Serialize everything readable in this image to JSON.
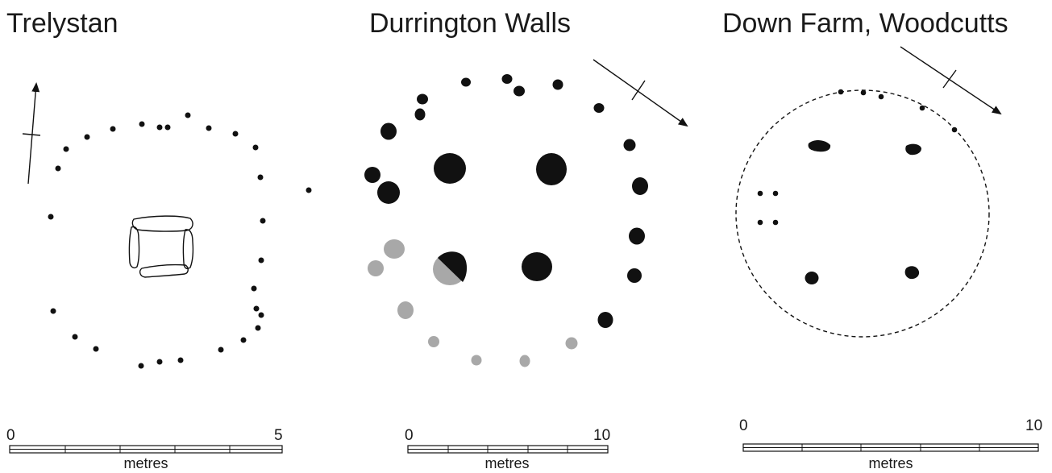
{
  "plans": [
    {
      "title": "Trelystan",
      "scale": {
        "start": "0",
        "end": "5",
        "unit": "metres"
      }
    },
    {
      "title": "Durrington Walls",
      "scale": {
        "start": "0",
        "end": "10",
        "unit": "metres"
      }
    },
    {
      "title": "Down Farm, Woodcutts",
      "scale": {
        "start": "0",
        "end": "10",
        "unit": "metres"
      }
    }
  ],
  "colors": {
    "ink": "#111111",
    "excavated_grey": "#a8a8a8",
    "background": "#ffffff"
  },
  "icons": [
    "north-arrow-icon"
  ]
}
